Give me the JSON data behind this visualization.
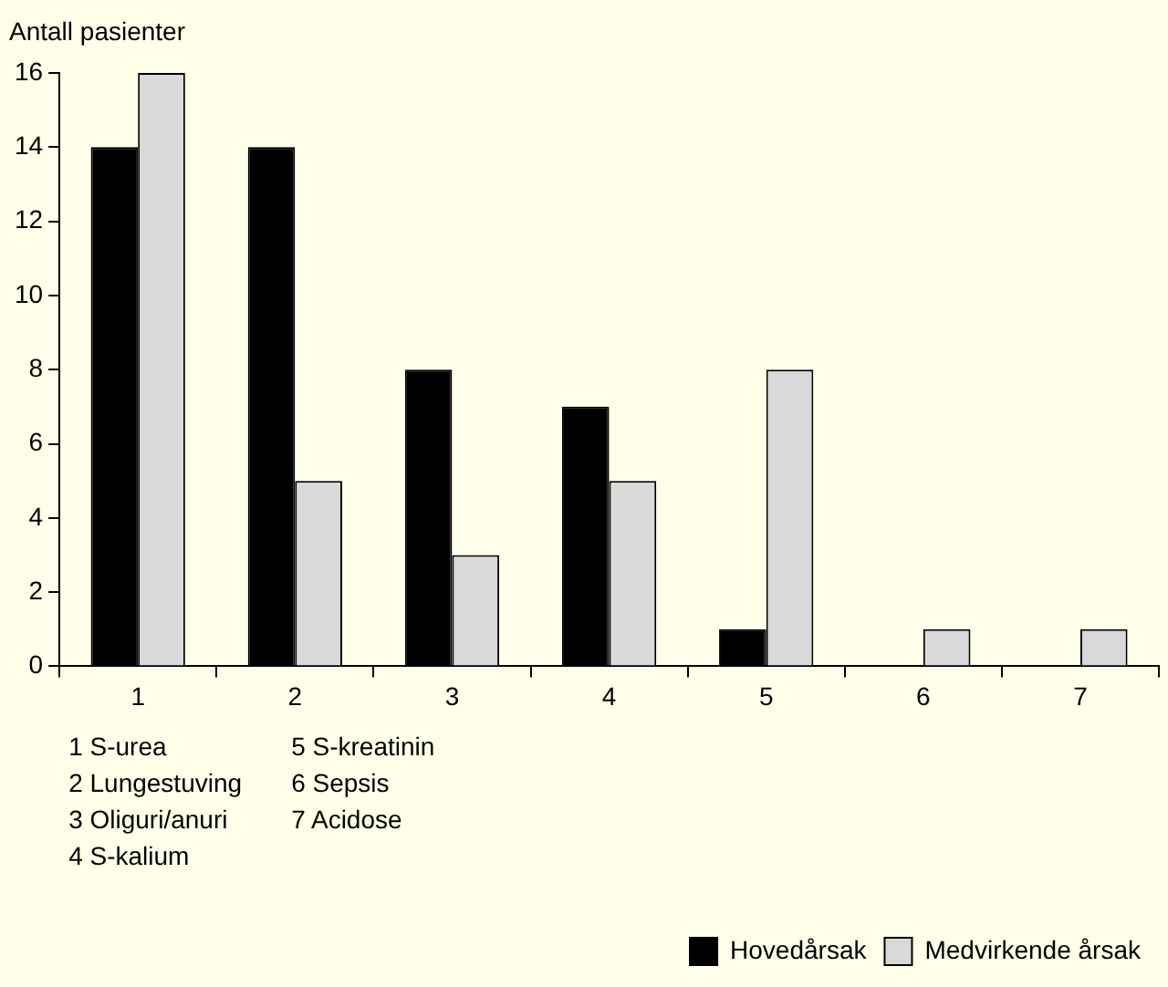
{
  "chart_data": {
    "type": "bar",
    "ylabel": "Antall pasienter",
    "categories": [
      "1",
      "2",
      "3",
      "4",
      "5",
      "6",
      "7"
    ],
    "series": [
      {
        "name": "Hovedårsak",
        "color": "#000000",
        "values": [
          14,
          14,
          8,
          7,
          1,
          0,
          0
        ]
      },
      {
        "name": "Medvirkende årsak",
        "color": "#d9d9d9",
        "values": [
          16,
          5,
          3,
          5,
          8,
          1,
          1
        ]
      }
    ],
    "ylim": [
      0,
      16
    ],
    "yticks": [
      0,
      2,
      4,
      6,
      8,
      10,
      12,
      14,
      16
    ],
    "grid": false,
    "legend": "bottom right",
    "annotations": [
      "1 S-urea",
      "2 Lungestuving",
      "3 Oliguri/anuri",
      "4 S-kalium",
      "5 S-kreatinin",
      "6 Sepsis",
      "7 Acidose"
    ]
  }
}
